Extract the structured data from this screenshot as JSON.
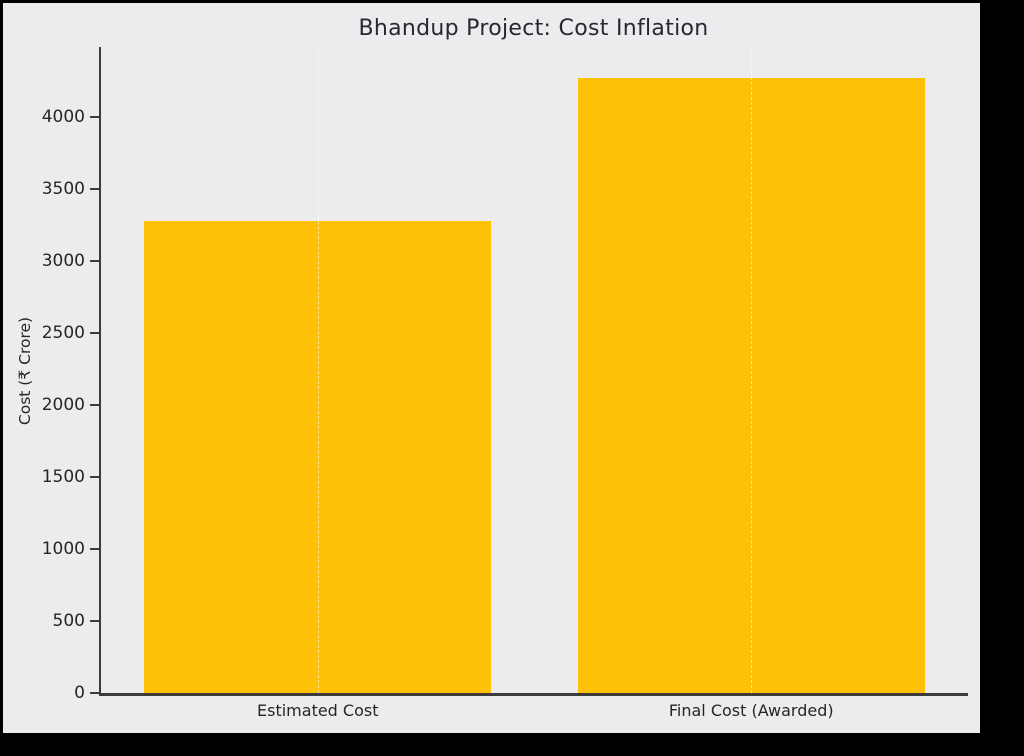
{
  "window": {
    "background_color": "#000000"
  },
  "figure": {
    "background_color": "#ECECEE"
  },
  "chart_data": {
    "type": "bar",
    "title": "Bhandup Project: Cost Inflation",
    "categories": [
      "Estimated Cost",
      "Final Cost (Awarded)"
    ],
    "values": [
      3280,
      4276
    ],
    "xlabel": "",
    "ylabel": "Cost (₹ Crore)",
    "ylim": [
      0,
      4490
    ],
    "yticks": [
      0,
      500,
      1000,
      1500,
      2000,
      2500,
      3000,
      3500,
      4000
    ],
    "bar_color": "#FFC107",
    "bar_width_fraction": 0.8,
    "grid": "vertical dashed gridlines at category centers",
    "gridline_color": "rgba(255,255,255,0.55)",
    "legend_position": "none",
    "axis_color": "#3B3B3B",
    "text_color": "#262626"
  }
}
